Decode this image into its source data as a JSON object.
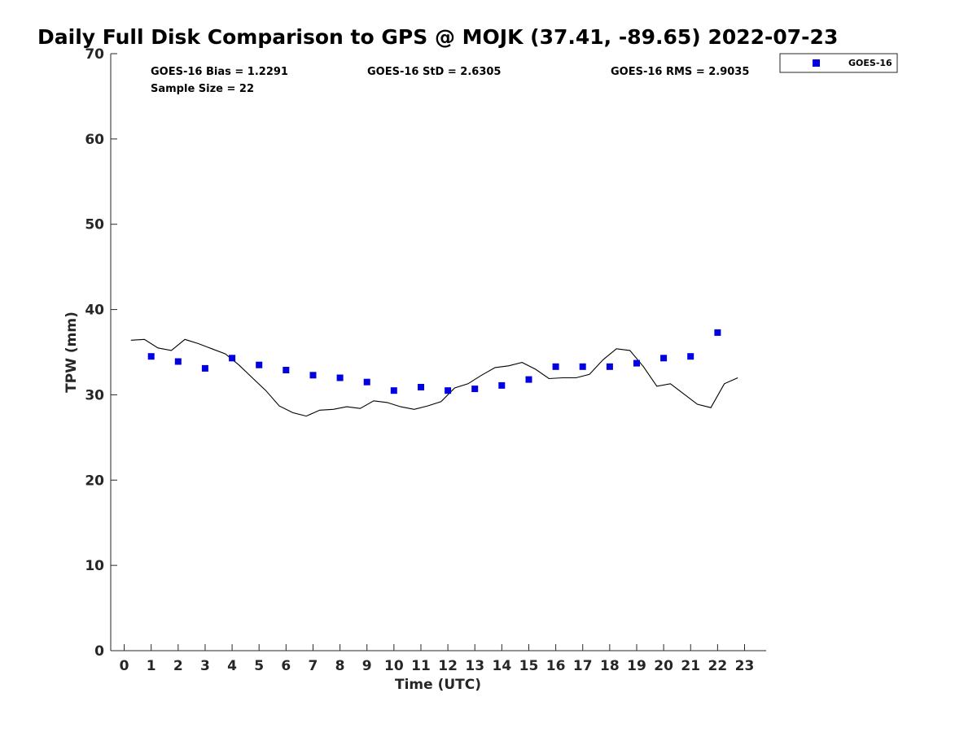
{
  "chart_data": {
    "type": "scatter",
    "title": "Daily Full Disk Comparison to GPS @ MOJK (37.41, -89.65) 2022-07-23",
    "xlabel": "Time (UTC)",
    "ylabel": "TPW (mm)",
    "xlim": [
      -0.5,
      23.8
    ],
    "ylim": [
      0,
      70
    ],
    "x_ticks": [
      "0",
      "1",
      "2",
      "3",
      "4",
      "5",
      "6",
      "7",
      "8",
      "9",
      "10",
      "11",
      "12",
      "13",
      "14",
      "15",
      "16",
      "17",
      "18",
      "19",
      "20",
      "21",
      "22",
      "23"
    ],
    "y_ticks": [
      "0",
      "10",
      "20",
      "30",
      "40",
      "50",
      "60",
      "70"
    ],
    "grid": false,
    "legend_position": "outside-top-right",
    "stats": {
      "bias": "GOES-16 Bias = 1.2291",
      "std": "GOES-16 StD = 2.6305",
      "rms": "GOES-16 RMS = 2.9035",
      "sample": "Sample Size = 22"
    },
    "series": [
      {
        "name": "GOES-16",
        "kind": "scatter",
        "color": "#0000e0",
        "marker": "square",
        "x": [
          1,
          2,
          3,
          4,
          5,
          6,
          7,
          8,
          9,
          10,
          11,
          12,
          13,
          14,
          15,
          16,
          17,
          18,
          19,
          20,
          21,
          22
        ],
        "y": [
          34.5,
          33.9,
          33.1,
          34.3,
          33.5,
          32.9,
          32.3,
          32.0,
          31.5,
          30.5,
          30.9,
          30.5,
          30.7,
          31.1,
          31.8,
          33.3,
          33.3,
          33.3,
          33.7,
          34.3,
          34.5,
          37.3
        ]
      },
      {
        "kind": "line",
        "color": "#000000",
        "x": [
          0.25,
          0.75,
          1.25,
          1.75,
          2.25,
          2.75,
          3.25,
          3.75,
          4.25,
          4.75,
          5.25,
          5.75,
          6.25,
          6.75,
          7.25,
          7.75,
          8.25,
          8.75,
          9.25,
          9.75,
          10.25,
          10.75,
          11.25,
          11.75,
          12.25,
          12.75,
          13.25,
          13.75,
          14.25,
          14.75,
          15.25,
          15.75,
          16.25,
          16.75,
          17.25,
          17.75,
          18.25,
          18.75,
          19.25,
          19.75,
          20.25,
          20.75,
          21.25,
          21.75,
          22.25,
          22.75
        ],
        "y": [
          36.4,
          36.5,
          35.5,
          35.2,
          36.5,
          36.0,
          35.4,
          34.8,
          33.5,
          32.0,
          30.5,
          28.7,
          27.9,
          27.5,
          28.2,
          28.3,
          28.6,
          28.4,
          29.3,
          29.1,
          28.6,
          28.3,
          28.7,
          29.2,
          30.8,
          31.3,
          32.3,
          33.2,
          33.4,
          33.8,
          33.0,
          31.9,
          32.0,
          32.0,
          32.4,
          34.1,
          35.4,
          35.2,
          33.3,
          31.0,
          31.3,
          30.1,
          28.9,
          28.5,
          31.3,
          32.0
        ]
      }
    ]
  }
}
